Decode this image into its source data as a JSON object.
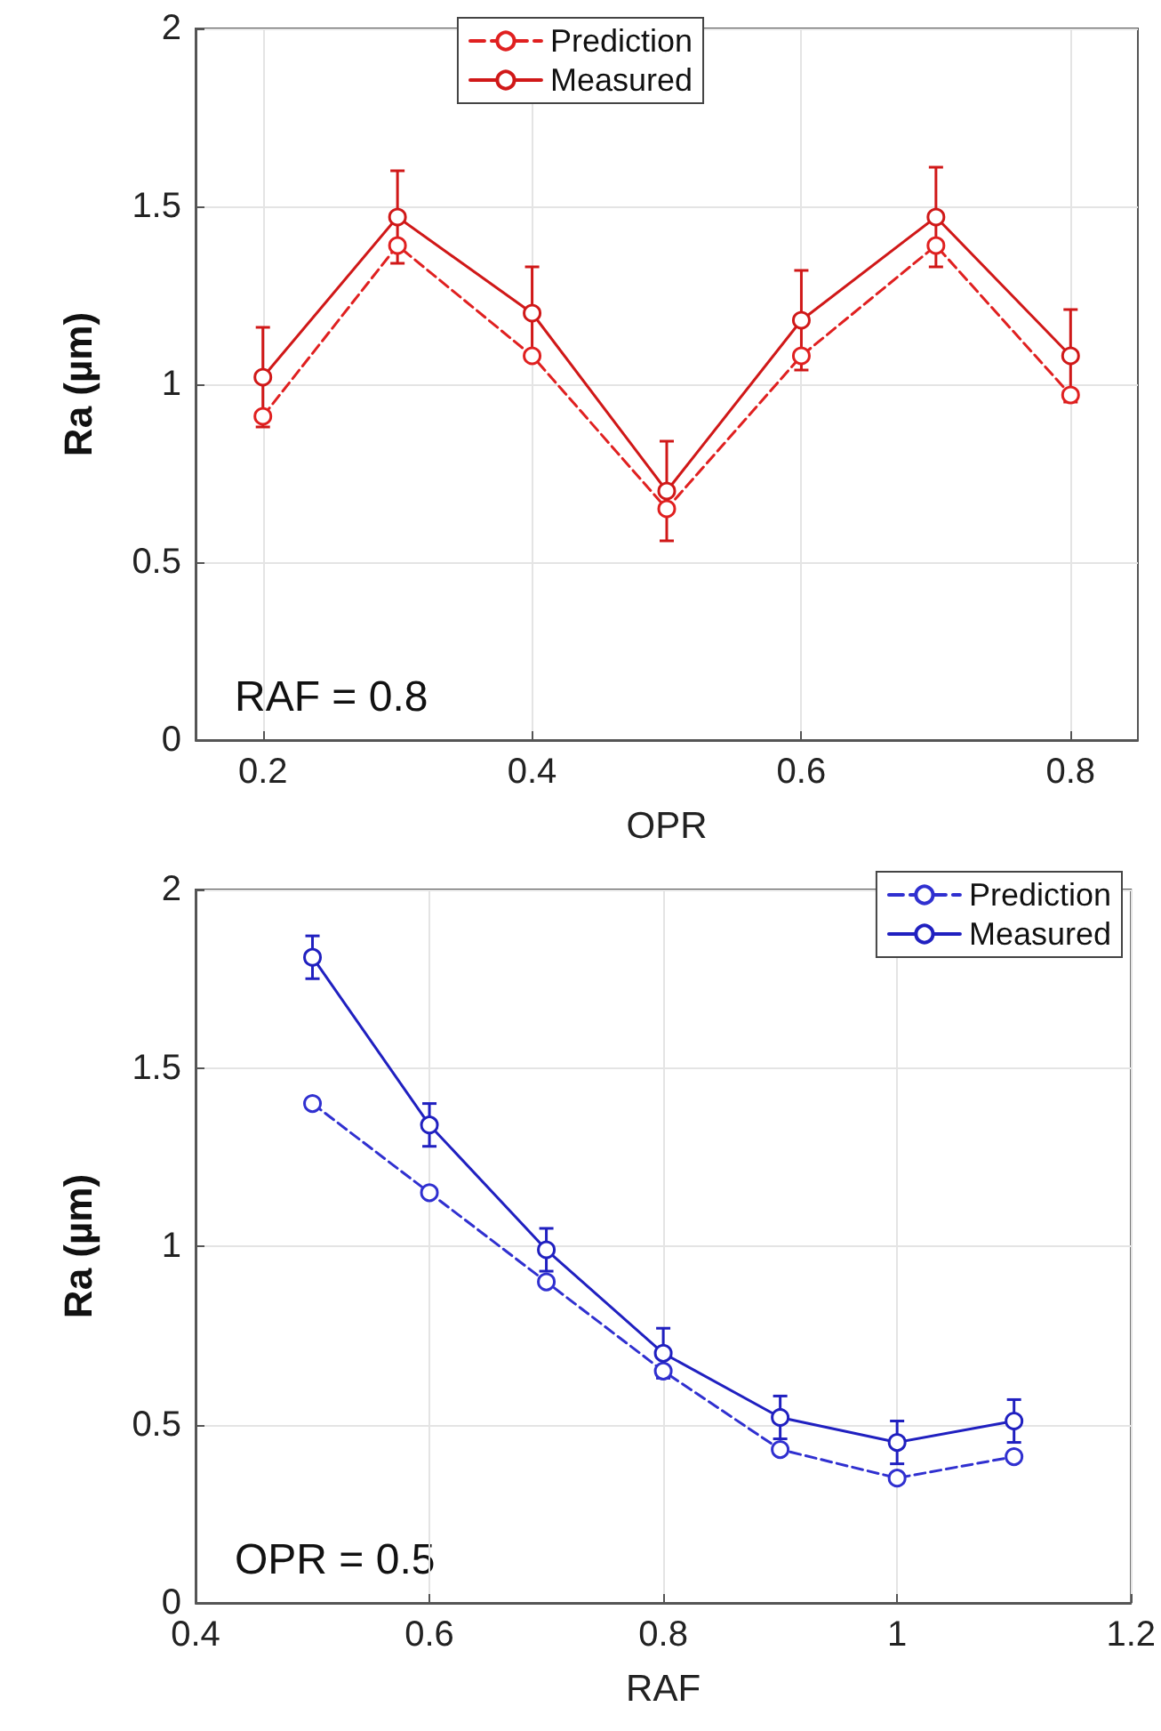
{
  "chart_data": [
    {
      "type": "line",
      "xlabel": "OPR",
      "ylabel": "Ra (µm)",
      "annotations": [
        "RAF = 0.8"
      ],
      "x": [
        0.2,
        0.3,
        0.4,
        0.5,
        0.6,
        0.7,
        0.8
      ],
      "series": [
        {
          "name": "Prediction",
          "color": "#e02020",
          "line_style": "dashed",
          "values": [
            0.91,
            1.39,
            1.08,
            0.65,
            1.08,
            1.39,
            0.97
          ]
        },
        {
          "name": "Measured",
          "color": "#d01818",
          "line_style": "solid",
          "values": [
            1.02,
            1.47,
            1.2,
            0.7,
            1.18,
            1.47,
            1.08
          ],
          "errors": [
            0.14,
            0.13,
            0.13,
            0.14,
            0.14,
            0.14,
            0.13
          ]
        }
      ],
      "xlim": [
        0.15,
        0.85
      ],
      "xticks": [
        0.2,
        0.4,
        0.6,
        0.8
      ],
      "ylim": [
        0,
        2
      ],
      "yticks": [
        0,
        0.5,
        1,
        1.5,
        2
      ],
      "grid": true,
      "legend": "top",
      "marker": "circle"
    },
    {
      "type": "line",
      "xlabel": "RAF",
      "ylabel": "Ra (µm)",
      "annotations": [
        "OPR = 0.5"
      ],
      "x": [
        0.5,
        0.6,
        0.7,
        0.8,
        0.9,
        1.0,
        1.1
      ],
      "series": [
        {
          "name": "Prediction",
          "color": "#3030d0",
          "line_style": "dashed",
          "values": [
            1.4,
            1.15,
            0.9,
            0.65,
            0.43,
            0.35,
            0.41
          ]
        },
        {
          "name": "Measured",
          "color": "#2020c0",
          "line_style": "solid",
          "values": [
            1.81,
            1.34,
            0.99,
            0.7,
            0.52,
            0.45,
            0.51
          ],
          "errors": [
            0.06,
            0.06,
            0.06,
            0.07,
            0.06,
            0.06,
            0.06
          ]
        }
      ],
      "xlim": [
        0.4,
        1.2
      ],
      "xticks": [
        0.4,
        0.6,
        0.8,
        1,
        1.2
      ],
      "ylim": [
        0,
        2
      ],
      "yticks": [
        0,
        0.5,
        1,
        1.5,
        2
      ],
      "grid": true,
      "legend": "top right",
      "marker": "circle"
    }
  ]
}
